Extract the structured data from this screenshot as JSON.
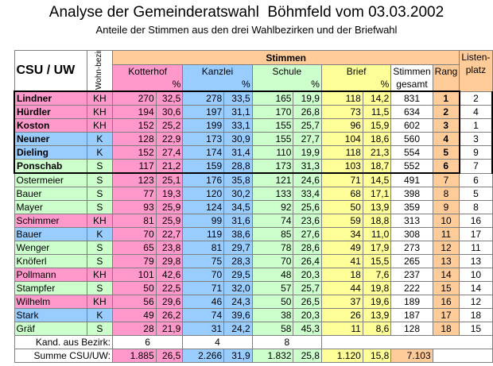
{
  "title": "Analyse der Gemeinderatswahl  Böhmfeld vom 03.03.2002",
  "subtitle": "Anteile der Stimmen aus den drei Wahlbezirken und der Briefwahl",
  "header": {
    "party": "CSU / UW",
    "bezirk": "Wohn-bezirk",
    "stimmen": "Stimmen",
    "kotterhof": "Kotterhof",
    "kanzlei": "Kanzlei",
    "schule": "Schule",
    "brief": "Brief",
    "pct": "%",
    "gesamt_line1": "Stimmen",
    "gesamt_line2": "gesamt",
    "rang": "Rang",
    "listen_line1": "Listen-",
    "listen_line2": "platz"
  },
  "colors": {
    "KH": "#ff99cc",
    "K": "#99ccff",
    "S": "#ccffcc",
    "kotterhof": "#ff99cc",
    "kanzlei": "#99ccff",
    "schule": "#ccffcc",
    "brief": "#ffff99",
    "rang": "#ffcc99"
  },
  "rows": [
    {
      "name": "Lindner",
      "bez": "KH",
      "kot": "270",
      "kotp": "32,5",
      "kan": "278",
      "kanp": "33,5",
      "sch": "165",
      "schp": "19,9",
      "bri": "118",
      "brip": "14,2",
      "ges": "831",
      "rang": "1",
      "liste": "2"
    },
    {
      "name": "Hürdler",
      "bez": "KH",
      "kot": "194",
      "kotp": "30,6",
      "kan": "197",
      "kanp": "31,1",
      "sch": "170",
      "schp": "26,8",
      "bri": "73",
      "brip": "11,5",
      "ges": "634",
      "rang": "2",
      "liste": "4"
    },
    {
      "name": "Koston",
      "bez": "KH",
      "kot": "152",
      "kotp": "25,2",
      "kan": "199",
      "kanp": "33,1",
      "sch": "155",
      "schp": "25,7",
      "bri": "96",
      "brip": "15,9",
      "ges": "602",
      "rang": "3",
      "liste": "1"
    },
    {
      "name": "Neuner",
      "bez": "K",
      "kot": "128",
      "kotp": "22,9",
      "kan": "173",
      "kanp": "30,9",
      "sch": "155",
      "schp": "27,7",
      "bri": "104",
      "brip": "18,6",
      "ges": "560",
      "rang": "4",
      "liste": "3"
    },
    {
      "name": "Dieling",
      "bez": "K",
      "kot": "152",
      "kotp": "27,4",
      "kan": "174",
      "kanp": "31,4",
      "sch": "110",
      "schp": "19,9",
      "bri": "118",
      "brip": "21,3",
      "ges": "554",
      "rang": "5",
      "liste": "9"
    },
    {
      "name": "Ponschab",
      "bez": "S",
      "kot": "117",
      "kotp": "21,2",
      "kan": "159",
      "kanp": "28,8",
      "sch": "173",
      "schp": "31,3",
      "bri": "103",
      "brip": "18,7",
      "ges": "552",
      "rang": "6",
      "liste": "7"
    },
    {
      "name": "Ostermeier",
      "bez": "S",
      "kot": "123",
      "kotp": "25,1",
      "kan": "176",
      "kanp": "35,8",
      "sch": "121",
      "schp": "24,6",
      "bri": "71",
      "brip": "14,5",
      "ges": "491",
      "rang": "7",
      "liste": "6"
    },
    {
      "name": "Bauer",
      "bez": "S",
      "kot": "77",
      "kotp": "19,3",
      "kan": "120",
      "kanp": "30,2",
      "sch": "133",
      "schp": "33,4",
      "bri": "68",
      "brip": "17,1",
      "ges": "398",
      "rang": "8",
      "liste": "5"
    },
    {
      "name": "Mayer",
      "bez": "S",
      "kot": "93",
      "kotp": "25,9",
      "kan": "124",
      "kanp": "34,5",
      "sch": "92",
      "schp": "25,6",
      "bri": "50",
      "brip": "13,9",
      "ges": "359",
      "rang": "9",
      "liste": "8"
    },
    {
      "name": "Schimmer",
      "bez": "KH",
      "kot": "81",
      "kotp": "25,9",
      "kan": "99",
      "kanp": "31,6",
      "sch": "74",
      "schp": "23,6",
      "bri": "59",
      "brip": "18,8",
      "ges": "313",
      "rang": "10",
      "liste": "16"
    },
    {
      "name": "Bauer",
      "bez": "K",
      "kot": "70",
      "kotp": "22,7",
      "kan": "119",
      "kanp": "38,6",
      "sch": "85",
      "schp": "27,6",
      "bri": "34",
      "brip": "11,0",
      "ges": "308",
      "rang": "11",
      "liste": "17"
    },
    {
      "name": "Wenger",
      "bez": "S",
      "kot": "65",
      "kotp": "23,8",
      "kan": "81",
      "kanp": "29,7",
      "sch": "78",
      "schp": "28,6",
      "bri": "49",
      "brip": "17,9",
      "ges": "273",
      "rang": "12",
      "liste": "11"
    },
    {
      "name": "Knöferl",
      "bez": "S",
      "kot": "79",
      "kotp": "29,8",
      "kan": "75",
      "kanp": "28,3",
      "sch": "70",
      "schp": "26,4",
      "bri": "41",
      "brip": "15,5",
      "ges": "265",
      "rang": "13",
      "liste": "13"
    },
    {
      "name": "Pollmann",
      "bez": "KH",
      "kot": "101",
      "kotp": "42,6",
      "kan": "70",
      "kanp": "29,5",
      "sch": "48",
      "schp": "20,3",
      "bri": "18",
      "brip": "7,6",
      "ges": "237",
      "rang": "14",
      "liste": "10"
    },
    {
      "name": "Stampfer",
      "bez": "S",
      "kot": "50",
      "kotp": "22,5",
      "kan": "71",
      "kanp": "32,0",
      "sch": "57",
      "schp": "25,7",
      "bri": "44",
      "brip": "19,8",
      "ges": "222",
      "rang": "15",
      "liste": "14"
    },
    {
      "name": "Wilhelm",
      "bez": "KH",
      "kot": "56",
      "kotp": "29,6",
      "kan": "46",
      "kanp": "24,3",
      "sch": "50",
      "schp": "26,5",
      "bri": "37",
      "brip": "19,6",
      "ges": "189",
      "rang": "16",
      "liste": "12"
    },
    {
      "name": "Stark",
      "bez": "K",
      "kot": "49",
      "kotp": "26,2",
      "kan": "74",
      "kanp": "39,6",
      "sch": "38",
      "schp": "20,3",
      "bri": "26",
      "brip": "13,9",
      "ges": "187",
      "rang": "17",
      "liste": "18"
    },
    {
      "name": "Gräf",
      "bez": "S",
      "kot": "28",
      "kotp": "21,9",
      "kan": "31",
      "kanp": "24,2",
      "sch": "58",
      "schp": "45,3",
      "bri": "11",
      "brip": "8,6",
      "ges": "128",
      "rang": "18",
      "liste": "15"
    }
  ],
  "footer": {
    "kand_label": "Kand. aus Bezirk:",
    "kand_kot": "6",
    "kand_kan": "4",
    "kand_sch": "8",
    "summe_label": "Summe CSU/UW:",
    "sum_kot": "1.885",
    "sum_kotp": "26,5",
    "sum_kan": "2.266",
    "sum_kanp": "31,9",
    "sum_sch": "1.832",
    "sum_schp": "25,8",
    "sum_bri": "1.120",
    "sum_brip": "15,8",
    "sum_ges": "7.103"
  }
}
